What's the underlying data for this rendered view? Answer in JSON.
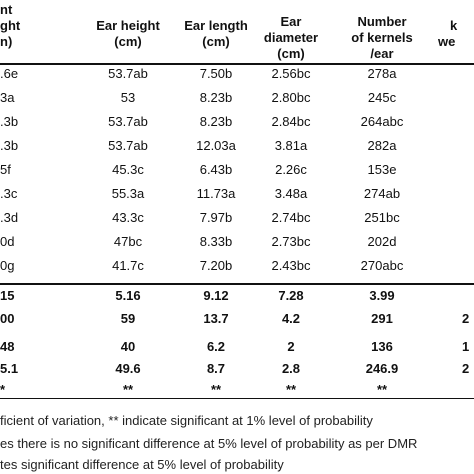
{
  "table": {
    "headers": [
      [
        "nt",
        "ght",
        "n)"
      ],
      [
        "Ear height",
        "(cm)"
      ],
      [
        "Ear length",
        "(cm)"
      ],
      [
        "Ear",
        "diameter",
        "(cm)"
      ],
      [
        "Number",
        "of kernels",
        "/ear"
      ],
      [
        "k",
        "we"
      ]
    ],
    "rows": [
      [
        ".6e",
        "53.7ab",
        "7.50b",
        "2.56bc",
        "278a"
      ],
      [
        "3a",
        "53",
        "8.23b",
        "2.80bc",
        "245c"
      ],
      [
        ".3b",
        "53.7ab",
        "8.23b",
        "2.84bc",
        "264abc"
      ],
      [
        ".3b",
        "53.7ab",
        "12.03a",
        "3.81a",
        "282a"
      ],
      [
        "5f",
        "45.3c",
        "6.43b",
        "2.26c",
        "153e"
      ],
      [
        ".3c",
        "55.3a",
        "11.73a",
        "3.48a",
        "274ab"
      ],
      [
        ".3d",
        "43.3c",
        "7.97b",
        "2.74bc",
        "251bc"
      ],
      [
        "0d",
        "47bc",
        "8.33b",
        "2.73bc",
        "202d"
      ],
      [
        "0g",
        "41.7c",
        "7.20b",
        "2.43bc",
        "270abc"
      ]
    ],
    "stats_rows": [
      [
        "15",
        "5.16",
        "9.12",
        "7.28",
        "3.99",
        ""
      ],
      [
        "00",
        "59",
        "13.7",
        "4.2",
        "291",
        "2"
      ],
      [
        "48",
        "40",
        "6.2",
        "2",
        "136",
        "1"
      ],
      [
        "5.1",
        "49.6",
        "8.7",
        "2.8",
        "246.9",
        "2"
      ],
      [
        "*",
        "**",
        "**",
        "**",
        "**",
        ""
      ]
    ]
  },
  "footnotes": [
    "ficient of variation, ** indicate significant at 1% level of probability",
    "es there is no significant difference at 5% level of probability as per DMR",
    "tes significant difference at 5% level of probability"
  ]
}
